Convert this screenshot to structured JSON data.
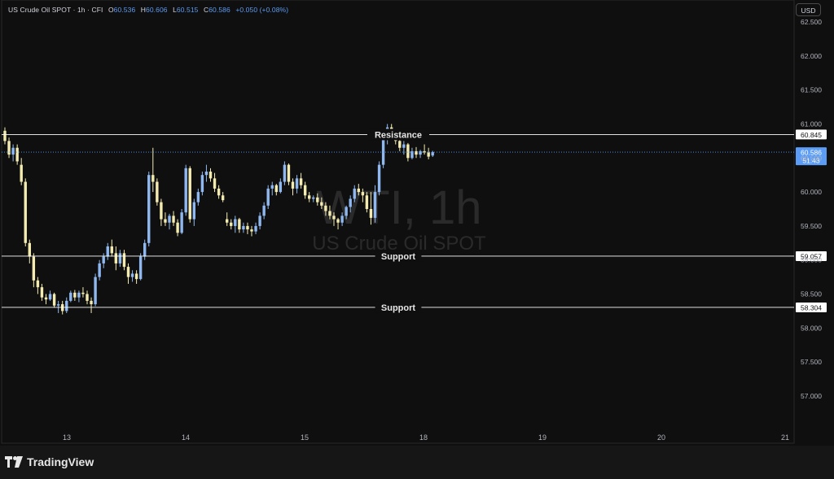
{
  "header": {
    "symbol": "US Crude Oil SPOT · 1h · CFI",
    "o_label": "O",
    "o_value": "60.536",
    "h_label": "H",
    "h_value": "60.606",
    "l_label": "L",
    "l_value": "60.515",
    "c_label": "C",
    "c_value": "60.586",
    "change": "+0.050 (+0.08%)"
  },
  "currency_button": "USD",
  "watermark": {
    "line1": "WTI, 1h",
    "line2": "US Crude Oil SPOT"
  },
  "footer": {
    "brand": "TradingView",
    "logo_icon": "tradingview-logo-icon"
  },
  "colors": {
    "background": "#0f0f0f",
    "up_candle": "#8fb8f0",
    "down_candle": "#f3ebb0",
    "level_line": "#ffffff",
    "price_label_bg": "#5b9cf6",
    "text": "#d1d4dc"
  },
  "chart_data": {
    "type": "candlestick",
    "y_axis": {
      "min": 56.6,
      "max": 62.6,
      "ticks": [
        "62.500",
        "62.000",
        "61.500",
        "61.000",
        "60.500",
        "60.000",
        "59.500",
        "59.000",
        "58.500",
        "58.000",
        "57.500",
        "57.000"
      ]
    },
    "x_axis": {
      "ticks": [
        "13",
        "14",
        "15",
        "18",
        "19",
        "20",
        "21"
      ]
    },
    "levels": [
      {
        "label": "Resistance",
        "price": 60.845,
        "price_label": "60.845"
      },
      {
        "label": "Support",
        "price": 59.057,
        "price_label": "59.057"
      },
      {
        "label": "Support",
        "price": 58.304,
        "price_label": "58.304"
      }
    ],
    "current_price": {
      "price": 60.586,
      "label": "60.586",
      "countdown": "51:43"
    },
    "grid": false,
    "candles": [
      [
        60.9,
        60.95,
        60.7,
        60.75
      ],
      [
        60.75,
        60.8,
        60.5,
        60.55
      ],
      [
        60.55,
        60.7,
        60.45,
        60.65
      ],
      [
        60.65,
        60.7,
        60.4,
        60.45
      ],
      [
        60.4,
        60.5,
        60.1,
        60.15
      ],
      [
        60.15,
        60.2,
        59.2,
        59.25
      ],
      [
        59.25,
        59.3,
        58.95,
        59.05
      ],
      [
        59.05,
        59.1,
        58.6,
        58.7
      ],
      [
        58.7,
        58.75,
        58.5,
        58.6
      ],
      [
        58.6,
        58.65,
        58.4,
        58.45
      ],
      [
        58.45,
        58.5,
        58.35,
        58.42
      ],
      [
        58.42,
        58.55,
        58.4,
        58.5
      ],
      [
        58.5,
        58.52,
        58.3,
        58.33
      ],
      [
        58.33,
        58.4,
        58.22,
        58.35
      ],
      [
        58.35,
        58.4,
        58.2,
        58.25
      ],
      [
        58.25,
        58.45,
        58.22,
        58.4
      ],
      [
        58.4,
        58.55,
        58.38,
        58.52
      ],
      [
        58.52,
        58.56,
        58.4,
        58.45
      ],
      [
        58.45,
        58.55,
        58.38,
        58.52
      ],
      [
        58.52,
        58.6,
        58.45,
        58.5
      ],
      [
        58.5,
        58.55,
        58.35,
        58.4
      ],
      [
        58.4,
        58.45,
        58.22,
        58.35
      ],
      [
        58.35,
        58.8,
        58.32,
        58.75
      ],
      [
        58.75,
        59.0,
        58.7,
        58.95
      ],
      [
        58.95,
        59.1,
        58.88,
        59.05
      ],
      [
        59.05,
        59.25,
        59.0,
        59.2
      ],
      [
        59.2,
        59.3,
        59.05,
        59.1
      ],
      [
        59.1,
        59.2,
        58.85,
        58.95
      ],
      [
        58.95,
        59.15,
        58.9,
        59.1
      ],
      [
        59.1,
        59.15,
        58.85,
        58.9
      ],
      [
        58.9,
        58.95,
        58.65,
        58.75
      ],
      [
        58.75,
        58.85,
        58.68,
        58.8
      ],
      [
        58.8,
        58.85,
        58.65,
        58.72
      ],
      [
        58.72,
        59.1,
        58.7,
        59.05
      ],
      [
        59.05,
        59.3,
        59.0,
        59.25
      ],
      [
        59.25,
        60.3,
        59.2,
        60.25
      ],
      [
        60.25,
        60.65,
        60.0,
        60.15
      ],
      [
        60.15,
        60.2,
        59.8,
        59.85
      ],
      [
        59.85,
        59.9,
        59.5,
        59.6
      ],
      [
        59.6,
        59.7,
        59.5,
        59.55
      ],
      [
        59.55,
        59.68,
        59.45,
        59.65
      ],
      [
        59.65,
        59.72,
        59.5,
        59.55
      ],
      [
        59.55,
        59.6,
        59.35,
        59.4
      ],
      [
        59.4,
        59.75,
        59.38,
        59.7
      ],
      [
        59.7,
        60.4,
        59.65,
        60.35
      ],
      [
        60.35,
        60.38,
        59.55,
        59.6
      ],
      [
        59.6,
        59.9,
        59.5,
        59.85
      ],
      [
        59.85,
        60.05,
        59.8,
        60.0
      ],
      [
        60.0,
        60.3,
        59.95,
        60.25
      ],
      [
        60.25,
        60.4,
        60.15,
        60.3
      ],
      [
        60.3,
        60.35,
        60.15,
        60.2
      ],
      [
        60.2,
        60.28,
        60.0,
        60.05
      ],
      [
        60.05,
        60.1,
        59.9,
        59.95
      ],
      [
        59.95,
        60.0,
        59.85,
        59.88
      ],
      [
        59.6,
        59.7,
        59.5,
        59.55
      ],
      [
        59.55,
        59.6,
        59.45,
        59.5
      ],
      [
        59.5,
        59.65,
        59.4,
        59.6
      ],
      [
        59.6,
        59.62,
        59.4,
        59.45
      ],
      [
        59.45,
        59.55,
        59.4,
        59.5
      ],
      [
        59.5,
        59.55,
        59.38,
        59.45
      ],
      [
        59.45,
        59.5,
        59.35,
        59.42
      ],
      [
        59.42,
        59.55,
        59.38,
        59.5
      ],
      [
        59.5,
        59.7,
        59.45,
        59.65
      ],
      [
        59.65,
        59.85,
        59.6,
        59.8
      ],
      [
        59.8,
        60.1,
        59.75,
        60.05
      ],
      [
        60.05,
        60.15,
        59.95,
        60.1
      ],
      [
        60.1,
        60.12,
        59.95,
        60.0
      ],
      [
        60.0,
        60.2,
        59.98,
        60.15
      ],
      [
        60.15,
        60.45,
        60.1,
        60.4
      ],
      [
        60.4,
        60.42,
        60.1,
        60.15
      ],
      [
        60.15,
        60.2,
        59.95,
        60.05
      ],
      [
        60.05,
        60.25,
        59.98,
        60.2
      ],
      [
        60.2,
        60.28,
        60.05,
        60.1
      ],
      [
        60.1,
        60.15,
        59.9,
        59.95
      ],
      [
        59.95,
        60.0,
        59.85,
        59.9
      ],
      [
        59.9,
        59.95,
        59.85,
        59.92
      ],
      [
        59.92,
        59.98,
        59.8,
        59.85
      ],
      [
        59.85,
        59.92,
        59.75,
        59.8
      ],
      [
        59.8,
        59.85,
        59.65,
        59.72
      ],
      [
        59.72,
        59.8,
        59.6,
        59.65
      ],
      [
        59.65,
        59.7,
        59.5,
        59.6
      ],
      [
        59.6,
        59.62,
        59.45,
        59.55
      ],
      [
        59.55,
        59.7,
        59.5,
        59.65
      ],
      [
        59.65,
        59.8,
        59.6,
        59.78
      ],
      [
        59.78,
        59.95,
        59.7,
        59.9
      ],
      [
        59.9,
        60.1,
        59.85,
        60.05
      ],
      [
        60.05,
        60.12,
        59.95,
        60.0
      ],
      [
        60.0,
        60.05,
        59.85,
        59.95
      ],
      [
        59.95,
        60.0,
        59.7,
        59.75
      ],
      [
        59.75,
        60.0,
        59.52,
        59.62
      ],
      [
        59.62,
        60.1,
        59.55,
        60.0
      ],
      [
        60.0,
        60.45,
        59.95,
        60.4
      ],
      [
        60.4,
        60.85,
        60.35,
        60.8
      ],
      [
        60.8,
        61.0,
        60.7,
        60.95
      ],
      [
        60.95,
        61.0,
        60.8,
        60.85
      ],
      [
        60.85,
        60.92,
        60.7,
        60.75
      ],
      [
        60.75,
        60.8,
        60.6,
        60.65
      ],
      [
        60.65,
        60.75,
        60.55,
        60.7
      ],
      [
        60.7,
        60.72,
        60.45,
        60.5
      ],
      [
        60.5,
        60.65,
        60.48,
        60.6
      ],
      [
        60.6,
        60.66,
        60.5,
        60.55
      ],
      [
        60.55,
        60.62,
        60.5,
        60.6
      ],
      [
        60.6,
        60.7,
        60.55,
        60.58
      ],
      [
        60.58,
        60.65,
        60.48,
        60.52
      ],
      [
        60.536,
        60.606,
        60.515,
        60.586
      ]
    ]
  }
}
